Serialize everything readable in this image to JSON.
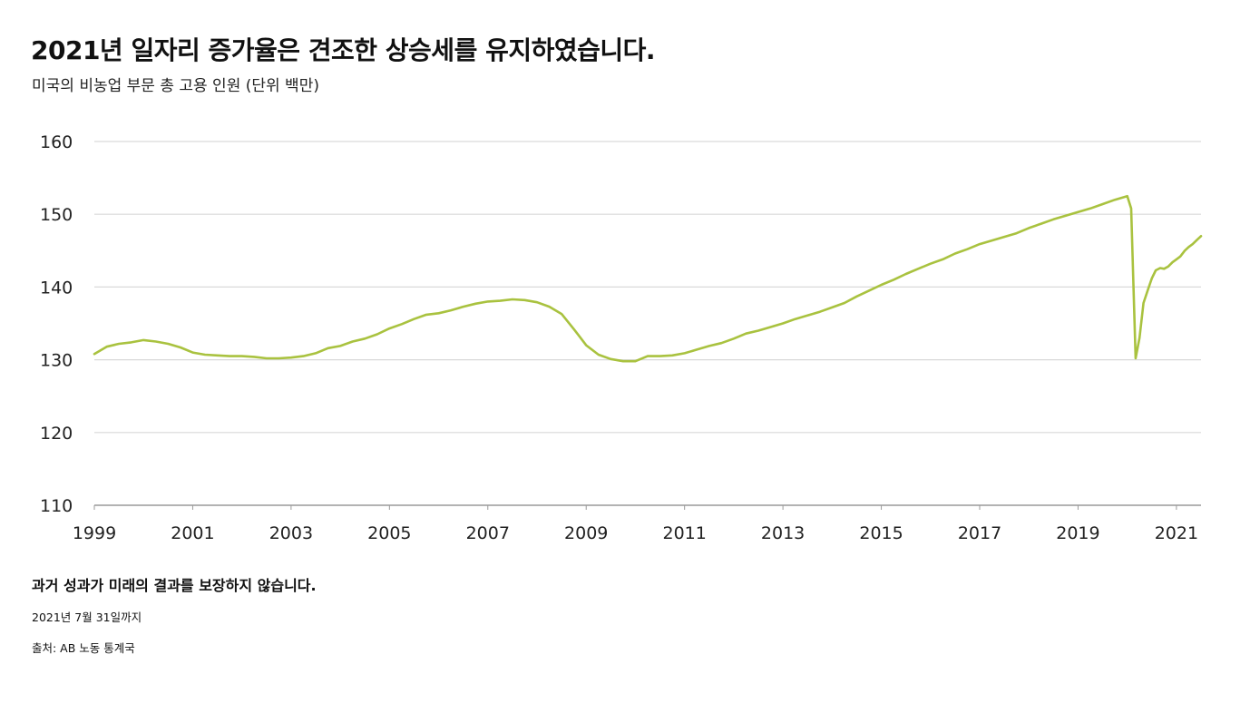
{
  "header": {
    "title": "2021년 일자리 증가율은 견조한 상승세를 유지하였습니다.",
    "subtitle": "미국의 비농업 부문 총 고용 인원 (단위 백만)"
  },
  "footer": {
    "disclaimer": "과거 성과가 미래의 결과를 보장하지 않습니다.",
    "as_of": "2021년 7월 31일까지",
    "source": "출처: AB 노동 통계국"
  },
  "colors": {
    "line": "#a9c23f",
    "grid": "#d9d9d9",
    "axis": "#9a9a9a",
    "text": "#111111"
  },
  "chart_data": {
    "type": "line",
    "title": "2021년 일자리 증가율은 견조한 상승세를 유지하였습니다.",
    "subtitle": "미국의 비농업 부문 총 고용 인원 (단위 백만)",
    "xlabel": "",
    "ylabel": "",
    "ylim": [
      110,
      160
    ],
    "yticks": [
      110,
      120,
      130,
      140,
      150,
      160
    ],
    "xlim": [
      1999.0,
      2021.5
    ],
    "xticks": [
      1999,
      2001,
      2003,
      2005,
      2007,
      2009,
      2011,
      2013,
      2015,
      2017,
      2019,
      2021
    ],
    "grid": true,
    "series": [
      {
        "x": [
          1999.0,
          1999.25,
          1999.5,
          1999.75,
          2000.0,
          2000.25,
          2000.5,
          2000.75,
          2001.0,
          2001.25,
          2001.5,
          2001.75,
          2002.0,
          2002.25,
          2002.5,
          2002.75,
          2003.0,
          2003.25,
          2003.5,
          2003.75,
          2004.0,
          2004.25,
          2004.5,
          2004.75,
          2005.0,
          2005.25,
          2005.5,
          2005.75,
          2006.0,
          2006.25,
          2006.5,
          2006.75,
          2007.0,
          2007.25,
          2007.5,
          2007.75,
          2008.0,
          2008.25,
          2008.5,
          2008.75,
          2009.0,
          2009.25,
          2009.5,
          2009.75,
          2010.0,
          2010.25,
          2010.5,
          2010.75,
          2011.0,
          2011.25,
          2011.5,
          2011.75,
          2012.0,
          2012.25,
          2012.5,
          2012.75,
          2013.0,
          2013.25,
          2013.5,
          2013.75,
          2014.0,
          2014.25,
          2014.5,
          2014.75,
          2015.0,
          2015.25,
          2015.5,
          2015.75,
          2016.0,
          2016.25,
          2016.5,
          2016.75,
          2017.0,
          2017.25,
          2017.5,
          2017.75,
          2018.0,
          2018.25,
          2018.5,
          2018.75,
          2019.0,
          2019.25,
          2019.5,
          2019.75,
          2020.0,
          2020.08,
          2020.17,
          2020.25,
          2020.33,
          2020.42,
          2020.5,
          2020.58,
          2020.67,
          2020.75,
          2020.83,
          2020.92,
          2021.0,
          2021.08,
          2021.17,
          2021.25,
          2021.33,
          2021.42,
          2021.5
        ],
        "values": [
          130.8,
          131.8,
          132.2,
          132.4,
          132.7,
          132.5,
          132.2,
          131.7,
          131.0,
          130.7,
          130.6,
          130.5,
          130.5,
          130.4,
          130.2,
          130.2,
          130.3,
          130.5,
          130.9,
          131.6,
          131.9,
          132.5,
          132.9,
          133.5,
          134.3,
          134.9,
          135.6,
          136.2,
          136.4,
          136.8,
          137.3,
          137.7,
          138.0,
          138.1,
          138.3,
          138.2,
          137.9,
          137.3,
          136.3,
          134.2,
          132.0,
          130.7,
          130.1,
          129.8,
          129.8,
          130.5,
          130.5,
          130.6,
          130.9,
          131.4,
          131.9,
          132.3,
          132.9,
          133.6,
          134.0,
          134.5,
          135.0,
          135.6,
          136.1,
          136.6,
          137.2,
          137.8,
          138.7,
          139.5,
          140.3,
          141.0,
          141.8,
          142.5,
          143.2,
          143.8,
          144.6,
          145.2,
          145.9,
          146.4,
          146.9,
          147.4,
          148.1,
          148.7,
          149.3,
          149.8,
          150.3,
          150.8,
          151.4,
          152.0,
          152.5,
          150.8,
          130.2,
          133.0,
          137.8,
          139.6,
          141.2,
          142.3,
          142.6,
          142.5,
          142.8,
          143.4,
          143.8,
          144.2,
          145.0,
          145.5,
          145.9,
          146.5,
          147.0
        ]
      }
    ]
  }
}
